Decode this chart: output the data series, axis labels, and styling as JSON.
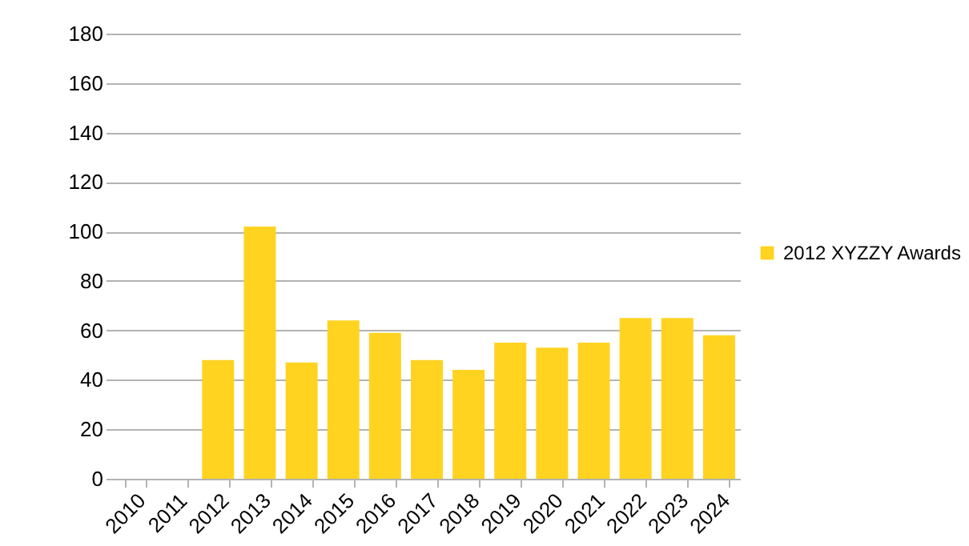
{
  "chart_data": {
    "type": "bar",
    "categories": [
      "2010",
      "2011",
      "2012",
      "2013",
      "2014",
      "2015",
      "2016",
      "2017",
      "2018",
      "2019",
      "2020",
      "2021",
      "2022",
      "2023",
      "2024"
    ],
    "series": [
      {
        "name": "2012 XYZZY Awards",
        "color": "#ffd320",
        "values": [
          null,
          null,
          48,
          102,
          47,
          64,
          59,
          48,
          44,
          55,
          53,
          55,
          65,
          65,
          58
        ]
      }
    ],
    "ylim": [
      0,
      180
    ],
    "yticks": [
      0,
      20,
      40,
      60,
      80,
      100,
      120,
      140,
      160,
      180
    ],
    "grid": "y",
    "legend": "right"
  }
}
